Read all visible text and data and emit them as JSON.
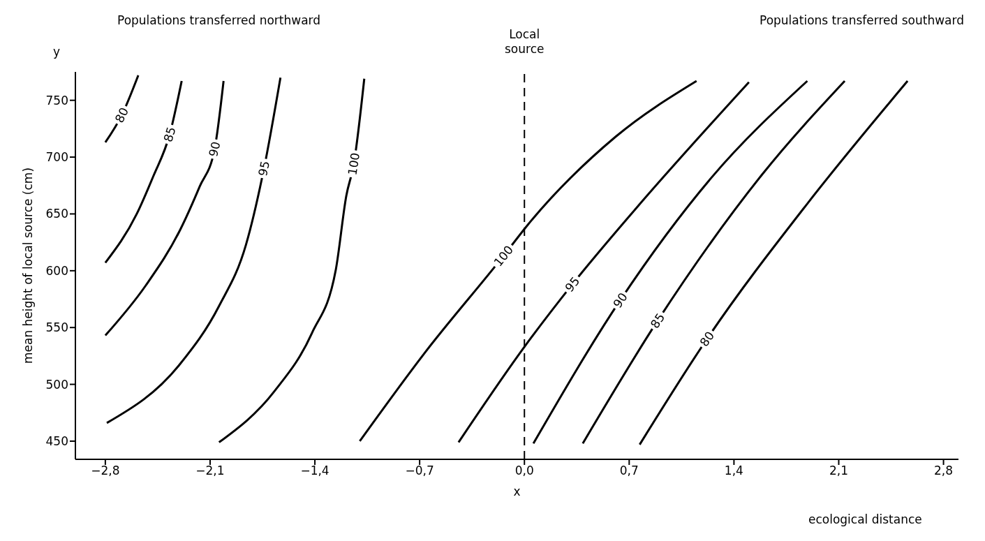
{
  "chart_data": {
    "type": "line",
    "xlabel": "x",
    "ylabel": "mean height of local source (cm)",
    "annotations": [
      "Populations transferred northward",
      "Populations transferred southward",
      "y",
      "ecological distance"
    ],
    "xlim": [
      -3.0,
      2.9
    ],
    "ylim": [
      434,
      775
    ],
    "xticks": [
      {
        "value": -2.8,
        "label": "−2,8"
      },
      {
        "value": -2.1,
        "label": "−2,1"
      },
      {
        "value": -1.4,
        "label": "−1,4"
      },
      {
        "value": -0.7,
        "label": "−0,7"
      },
      {
        "value": 0,
        "label": "0,0"
      },
      {
        "value": 0.7,
        "label": "0,7"
      },
      {
        "value": 1.4,
        "label": "1,4"
      },
      {
        "value": 2.1,
        "label": "2,1"
      },
      {
        "value": 2.8,
        "label": "2,8"
      }
    ],
    "yticks": [
      450,
      500,
      550,
      600,
      650,
      700,
      750
    ],
    "grid": false,
    "legend": false,
    "line_style": "solid",
    "ref_lines": [
      {
        "axis": "x",
        "value": 0,
        "label": "Local source",
        "line_style": "dashed",
        "color": "#000000"
      }
    ],
    "series": [
      {
        "name": "80",
        "color": "#000000",
        "x": [
          -2.8,
          -2.69,
          -2.58
        ],
        "values": [
          713,
          737,
          772
        ]
      },
      {
        "name": "85",
        "color": "#000000",
        "x": [
          -2.8,
          -2.59,
          -2.48,
          -2.37,
          -2.29
        ],
        "values": [
          607,
          650,
          683,
          720,
          767
        ]
      },
      {
        "name": "90",
        "color": "#000000",
        "x": [
          -2.8,
          -2.53,
          -2.3,
          -2.17,
          -2.07,
          -2.01
        ],
        "values": [
          543,
          587,
          636,
          674,
          707,
          767
        ]
      },
      {
        "name": "95",
        "color": "#000000",
        "x": [
          -2.79,
          -2.3,
          -2.04,
          -1.86,
          -1.74,
          -1.63
        ],
        "values": [
          466,
          518,
          569,
          623,
          690,
          770
        ]
      },
      {
        "name": "100",
        "color": "#000000",
        "x": [
          -2.04,
          -1.67,
          -1.42,
          -1.26,
          -1.19,
          -1.14,
          -1.07
        ],
        "values": [
          449,
          494,
          545,
          601,
          666,
          694,
          769
        ]
      },
      {
        "name": "100",
        "color": "#000000",
        "x": [
          -1.1,
          -0.67,
          -0.14,
          0.02,
          0.61,
          1.15
        ],
        "values": [
          450,
          527,
          613,
          640,
          718,
          767
        ]
      },
      {
        "name": "95",
        "color": "#000000",
        "x": [
          -0.44,
          0.0,
          0.32,
          0.74,
          1.5
        ],
        "values": [
          449,
          533,
          588,
          654,
          766
        ]
      },
      {
        "name": "90",
        "color": "#000000",
        "x": [
          0.06,
          0.64,
          1.25,
          1.89
        ],
        "values": [
          448,
          574,
          682,
          767
        ]
      },
      {
        "name": "85",
        "color": "#000000",
        "x": [
          0.39,
          0.89,
          1.59,
          2.14
        ],
        "values": [
          448,
          556,
          685,
          767
        ]
      },
      {
        "name": "80",
        "color": "#000000",
        "x": [
          0.77,
          1.22,
          1.89,
          2.56
        ],
        "values": [
          447,
          540,
          659,
          767
        ]
      }
    ]
  }
}
